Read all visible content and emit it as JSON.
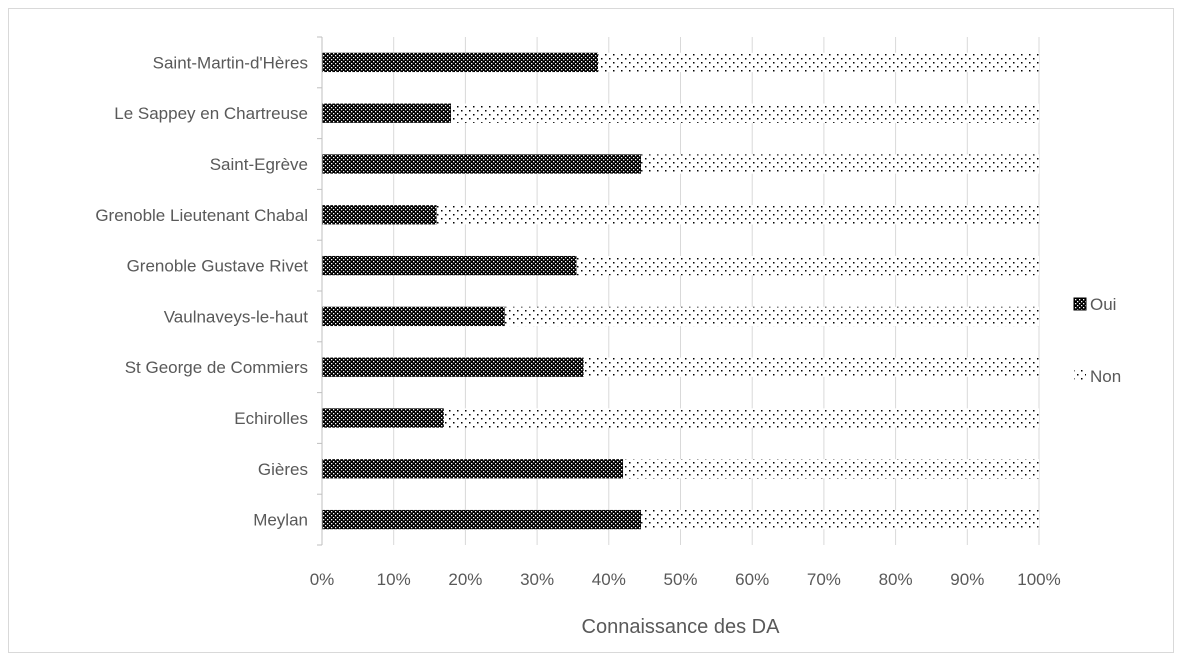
{
  "chart_data": {
    "type": "bar",
    "orientation": "horizontal",
    "stacked": "percent",
    "title": "",
    "xlabel": "Connaissance des DA",
    "ylabel": "",
    "xlim": [
      0,
      100
    ],
    "x_ticks": [
      "0%",
      "10%",
      "20%",
      "30%",
      "40%",
      "50%",
      "60%",
      "70%",
      "80%",
      "90%",
      "100%"
    ],
    "grid": "vertical",
    "legend_position": "right",
    "categories": [
      "Saint-Martin-d'Hères",
      "Le Sappey en Chartreuse",
      "Saint-Egrève",
      "Grenoble Lieutenant Chabal",
      "Grenoble Gustave Rivet",
      "Vaulnaveys-le-haut",
      "St George de Commiers",
      "Echirolles",
      "Gières",
      "Meylan"
    ],
    "series": [
      {
        "name": "Oui",
        "pattern": "dense-black-dots",
        "color": "#000000",
        "values": [
          38.5,
          18,
          44.5,
          16,
          35.5,
          25.5,
          36.5,
          17,
          42,
          44.5
        ]
      },
      {
        "name": "Non",
        "pattern": "sparse-dots",
        "color": "#000000",
        "values": [
          61.5,
          82,
          55.5,
          84,
          64.5,
          74.5,
          63.5,
          83,
          58,
          55.5
        ]
      }
    ]
  }
}
